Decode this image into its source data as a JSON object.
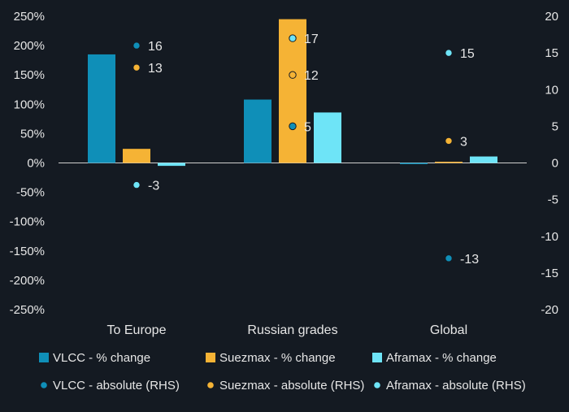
{
  "chart_data": {
    "type": "bar",
    "categories": [
      "To Europe",
      "Russian grades",
      "Global"
    ],
    "bar_series": [
      {
        "name": "VLCC - % change",
        "values": [
          185,
          108,
          -2
        ],
        "color": "#0f8fb8"
      },
      {
        "name": "Suezmax - % change",
        "values": [
          24,
          245,
          2
        ],
        "color": "#f5b335"
      },
      {
        "name": "Aframax - % change",
        "values": [
          -5,
          86,
          11
        ],
        "color": "#6ee4f7"
      }
    ],
    "point_series": [
      {
        "name": "VLCC - absolute (RHS)",
        "values": [
          16,
          5,
          -13
        ],
        "color": "#0f8fb8"
      },
      {
        "name": "Suezmax - absolute (RHS)",
        "values": [
          13,
          12,
          3
        ],
        "color": "#f5b335"
      },
      {
        "name": "Aframax - absolute (RHS)",
        "values": [
          -3,
          17,
          15
        ],
        "color": "#6ee4f7"
      }
    ],
    "y_left": {
      "ylim": [
        -250,
        250
      ],
      "ticks": [
        250,
        200,
        150,
        100,
        50,
        0,
        -50,
        -100,
        -150,
        -200,
        -250
      ],
      "tick_labels": [
        "250%",
        "200%",
        "150%",
        "100%",
        "50%",
        "0%",
        "-50%",
        "-100%",
        "-150%",
        "-200%",
        "-250%"
      ]
    },
    "y_right": {
      "ylim": [
        -20,
        20
      ],
      "ticks": [
        20,
        15,
        10,
        5,
        0,
        -5,
        -10,
        -15,
        -20
      ],
      "tick_labels": [
        "20",
        "15",
        "10",
        "5",
        "0",
        "-5",
        "-10",
        "-15",
        "-20"
      ]
    },
    "legend": [
      {
        "label": "VLCC - % change",
        "marker": "square",
        "color": "#0f8fb8"
      },
      {
        "label": "Suezmax - % change",
        "marker": "square",
        "color": "#f5b335"
      },
      {
        "label": "Aframax - % change",
        "marker": "square",
        "color": "#6ee4f7"
      },
      {
        "label": "VLCC - absolute (RHS)",
        "marker": "dot",
        "color": "#0f8fb8"
      },
      {
        "label": "Suezmax - absolute (RHS)",
        "marker": "dot",
        "color": "#f5b335"
      },
      {
        "label": "Aframax - absolute (RHS)",
        "marker": "dot",
        "color": "#6ee4f7"
      }
    ],
    "legend_placement": "bottom",
    "grid": false,
    "background": "#141a22",
    "text_color": "#e6e6e6"
  }
}
